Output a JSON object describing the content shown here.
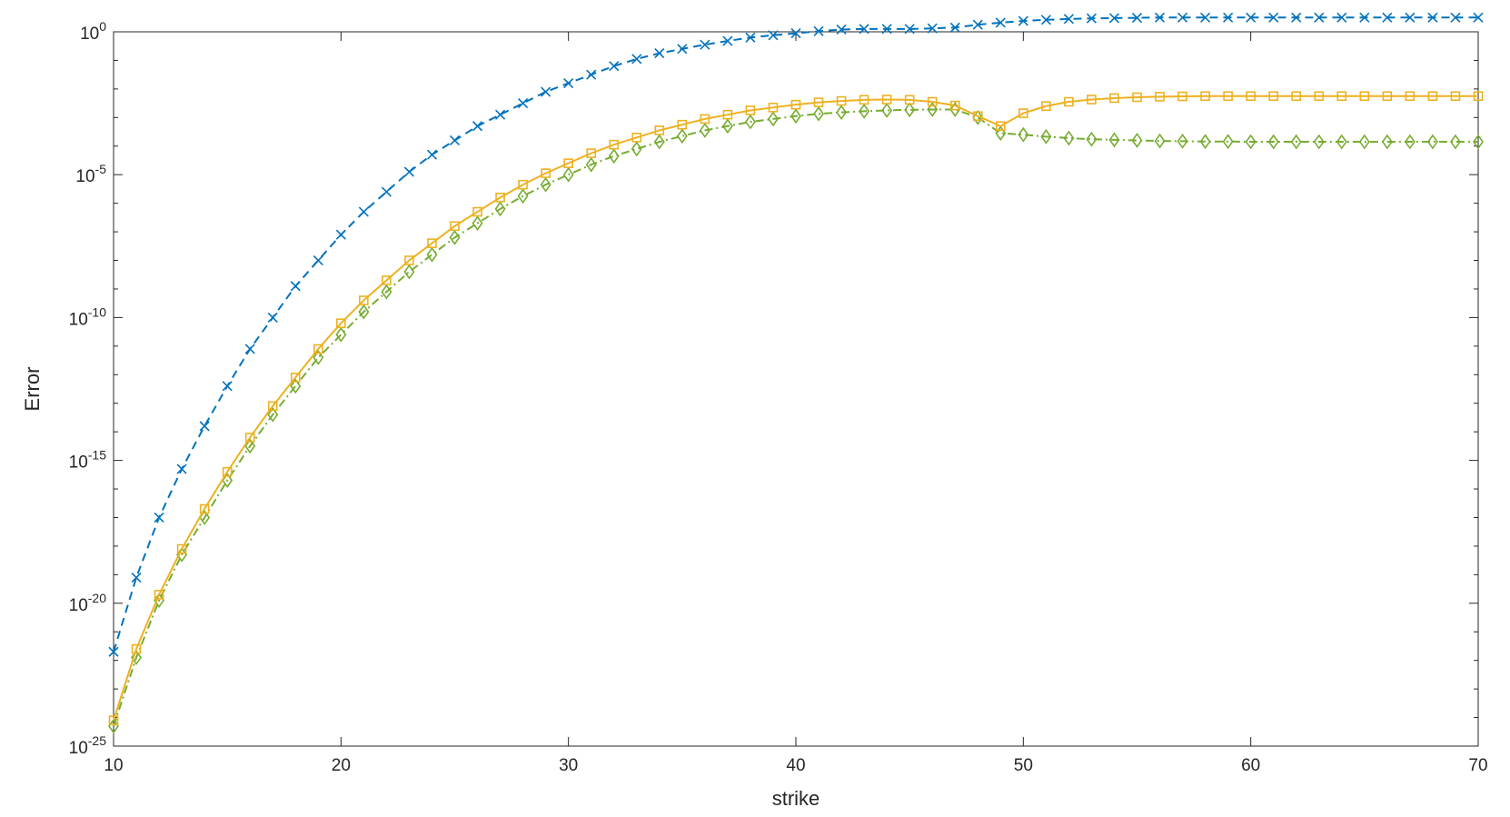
{
  "chart_data": {
    "type": "line",
    "title": "",
    "xlabel": "strike",
    "ylabel": "Error",
    "xlim": [
      10,
      70
    ],
    "ylim": [
      1e-25,
      1
    ],
    "yscale": "log",
    "grid": false,
    "legend": "none",
    "xticks": [
      "10",
      "20",
      "30",
      "40",
      "50",
      "60",
      "70"
    ],
    "yticks": [
      {
        "base": "10",
        "exp": "0",
        "value": 0
      },
      {
        "base": "10",
        "exp": "-5",
        "value": -5
      },
      {
        "base": "10",
        "exp": "-10",
        "value": -10
      },
      {
        "base": "10",
        "exp": "-15",
        "value": -15
      },
      {
        "base": "10",
        "exp": "-20",
        "value": -20
      },
      {
        "base": "10",
        "exp": "-25",
        "value": -25
      }
    ],
    "x": [
      10,
      11,
      12,
      13,
      14,
      15,
      16,
      17,
      18,
      19,
      20,
      21,
      22,
      23,
      24,
      25,
      26,
      27,
      28,
      29,
      30,
      31,
      32,
      33,
      34,
      35,
      36,
      37,
      38,
      39,
      40,
      41,
      42,
      43,
      44,
      45,
      46,
      47,
      48,
      49,
      50,
      51,
      52,
      53,
      54,
      55,
      56,
      57,
      58,
      59,
      60,
      61,
      62,
      63,
      64,
      65,
      66,
      67,
      68,
      69,
      70
    ],
    "series": [
      {
        "color": "#0072bd",
        "line": "dashed",
        "marker": "x",
        "log10_values": [
          -21.7,
          -19.1,
          -17.0,
          -15.3,
          -13.8,
          -12.4,
          -11.1,
          -10.0,
          -8.9,
          -8.0,
          -7.1,
          -6.3,
          -5.6,
          -4.9,
          -4.3,
          -3.8,
          -3.3,
          -2.9,
          -2.5,
          -2.1,
          -1.8,
          -1.5,
          -1.2,
          -0.95,
          -0.75,
          -0.6,
          -0.45,
          -0.32,
          -0.2,
          -0.12,
          -0.05,
          0.02,
          0.08,
          0.1,
          0.1,
          0.1,
          0.12,
          0.15,
          0.25,
          0.32,
          0.38,
          0.42,
          0.45,
          0.47,
          0.48,
          0.49,
          0.5,
          0.5,
          0.5,
          0.5,
          0.5,
          0.5,
          0.5,
          0.5,
          0.5,
          0.5,
          0.5,
          0.5,
          0.5,
          0.5,
          0.5
        ]
      },
      {
        "color": "#edb120",
        "line": "solid",
        "marker": "square",
        "log10_values": [
          -24.1,
          -21.6,
          -19.7,
          -18.1,
          -16.7,
          -15.4,
          -14.2,
          -13.1,
          -12.1,
          -11.1,
          -10.2,
          -9.4,
          -8.7,
          -8.0,
          -7.4,
          -6.8,
          -6.3,
          -5.8,
          -5.35,
          -4.95,
          -4.6,
          -4.25,
          -3.95,
          -3.7,
          -3.45,
          -3.25,
          -3.05,
          -2.9,
          -2.75,
          -2.65,
          -2.55,
          -2.47,
          -2.42,
          -2.38,
          -2.37,
          -2.38,
          -2.45,
          -2.58,
          -2.95,
          -3.3,
          -2.85,
          -2.6,
          -2.45,
          -2.37,
          -2.32,
          -2.29,
          -2.27,
          -2.26,
          -2.25,
          -2.25,
          -2.25,
          -2.25,
          -2.25,
          -2.25,
          -2.25,
          -2.25,
          -2.25,
          -2.25,
          -2.25,
          -2.25,
          -2.25
        ]
      },
      {
        "color": "#77ac30",
        "line": "dashdot",
        "marker": "diamond",
        "log10_values": [
          -24.3,
          -21.9,
          -19.9,
          -18.3,
          -17.0,
          -15.7,
          -14.5,
          -13.4,
          -12.4,
          -11.4,
          -10.6,
          -9.8,
          -9.1,
          -8.4,
          -7.8,
          -7.2,
          -6.7,
          -6.2,
          -5.75,
          -5.35,
          -5.0,
          -4.65,
          -4.35,
          -4.1,
          -3.85,
          -3.65,
          -3.45,
          -3.3,
          -3.15,
          -3.05,
          -2.95,
          -2.87,
          -2.82,
          -2.78,
          -2.75,
          -2.73,
          -2.72,
          -2.72,
          -3.0,
          -3.55,
          -3.6,
          -3.67,
          -3.72,
          -3.76,
          -3.78,
          -3.8,
          -3.82,
          -3.83,
          -3.84,
          -3.84,
          -3.85,
          -3.85,
          -3.85,
          -3.85,
          -3.85,
          -3.85,
          -3.85,
          -3.85,
          -3.85,
          -3.85,
          -3.85
        ]
      }
    ]
  }
}
